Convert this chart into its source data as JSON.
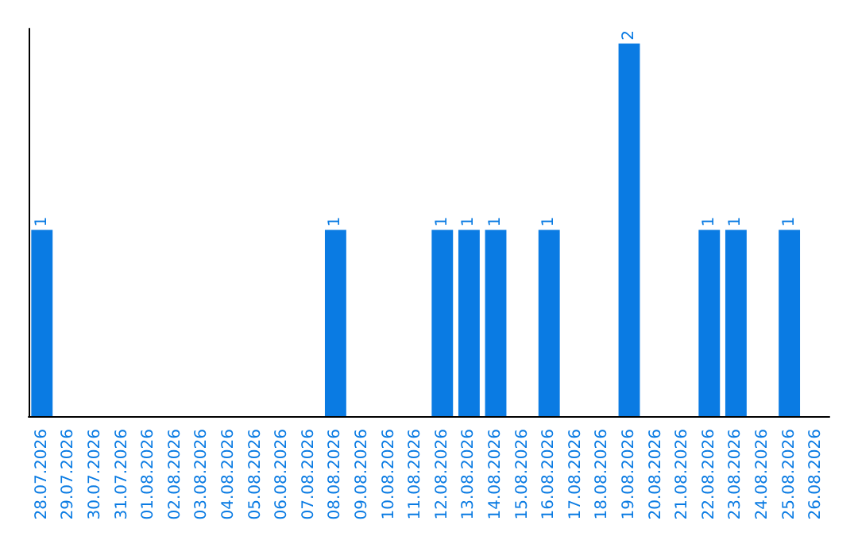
{
  "chart_data": {
    "type": "bar",
    "categories": [
      "28.07.2026",
      "29.07.2026",
      "30.07.2026",
      "31.07.2026",
      "01.08.2026",
      "02.08.2026",
      "03.08.2026",
      "04.08.2026",
      "05.08.2026",
      "06.08.2026",
      "07.08.2026",
      "08.08.2026",
      "09.08.2026",
      "10.08.2026",
      "11.08.2026",
      "12.08.2026",
      "13.08.2026",
      "14.08.2026",
      "15.08.2026",
      "16.08.2026",
      "17.08.2026",
      "18.08.2026",
      "19.08.2026",
      "20.08.2026",
      "21.08.2026",
      "22.08.2026",
      "23.08.2026",
      "24.08.2026",
      "25.08.2026",
      "26.08.2026"
    ],
    "values": [
      1,
      0,
      0,
      0,
      0,
      0,
      0,
      0,
      0,
      0,
      0,
      1,
      0,
      0,
      0,
      1,
      1,
      1,
      0,
      1,
      0,
      0,
      2,
      0,
      0,
      1,
      1,
      0,
      1,
      0
    ],
    "color": "#0a7be3",
    "value_labels": [
      "1",
      null,
      null,
      null,
      null,
      null,
      null,
      null,
      null,
      null,
      null,
      "1",
      null,
      null,
      null,
      "1",
      "1",
      "1",
      null,
      "1",
      null,
      null,
      "2",
      null,
      null,
      "1",
      "1",
      null,
      "1",
      null
    ],
    "grid": false,
    "tick_labels": "x"
  }
}
